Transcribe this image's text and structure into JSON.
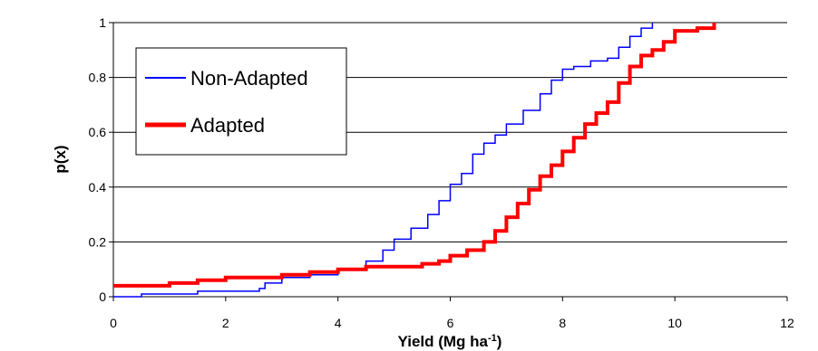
{
  "chart_data": {
    "type": "line",
    "title": "",
    "xlabel": "Yield (Mg ha",
    "xlabel_sup": "-1",
    "xlabel_close": ")",
    "ylabel": "p(x)",
    "xlim": [
      0,
      12
    ],
    "ylim": [
      0,
      1
    ],
    "x_ticks": [
      0,
      2,
      4,
      6,
      8,
      10,
      12
    ],
    "x_tick_labels": [
      "0",
      "2",
      "4",
      "6",
      "8",
      "10",
      "12"
    ],
    "y_ticks": [
      0,
      0.2,
      0.4,
      0.6,
      0.8,
      1
    ],
    "y_tick_labels": [
      "0",
      "0.2",
      "0.4",
      "0.6",
      "0.8",
      "1"
    ],
    "grid": "horizontal",
    "legend_position": "top-left",
    "series": [
      {
        "name": "Non-Adapted",
        "color": "#0000ff",
        "line_style": "thin",
        "x": [
          0.0,
          0.5,
          1.0,
          1.5,
          2.0,
          2.6,
          2.7,
          3.0,
          3.5,
          4.0,
          4.5,
          4.8,
          5.0,
          5.3,
          5.6,
          5.8,
          6.0,
          6.2,
          6.4,
          6.6,
          6.8,
          7.0,
          7.3,
          7.6,
          7.8,
          8.0,
          8.2,
          8.5,
          8.8,
          9.0,
          9.2,
          9.4,
          9.6
        ],
        "y": [
          0.0,
          0.01,
          0.01,
          0.02,
          0.02,
          0.03,
          0.05,
          0.07,
          0.08,
          0.1,
          0.13,
          0.17,
          0.21,
          0.25,
          0.3,
          0.35,
          0.41,
          0.45,
          0.52,
          0.56,
          0.59,
          0.63,
          0.68,
          0.74,
          0.79,
          0.83,
          0.84,
          0.86,
          0.87,
          0.91,
          0.95,
          0.98,
          1.0
        ]
      },
      {
        "name": "Adapted",
        "color": "#ff0000",
        "line_style": "thick",
        "x": [
          0.0,
          0.5,
          1.0,
          1.5,
          2.0,
          2.5,
          3.0,
          3.5,
          4.0,
          4.5,
          5.0,
          5.5,
          5.8,
          6.0,
          6.3,
          6.6,
          6.8,
          7.0,
          7.2,
          7.4,
          7.6,
          7.8,
          8.0,
          8.2,
          8.4,
          8.6,
          8.8,
          9.0,
          9.2,
          9.4,
          9.6,
          9.8,
          10.0,
          10.4,
          10.7
        ],
        "y": [
          0.04,
          0.04,
          0.05,
          0.06,
          0.07,
          0.07,
          0.08,
          0.09,
          0.1,
          0.11,
          0.11,
          0.12,
          0.13,
          0.15,
          0.17,
          0.2,
          0.24,
          0.29,
          0.34,
          0.39,
          0.44,
          0.48,
          0.53,
          0.58,
          0.63,
          0.67,
          0.71,
          0.78,
          0.84,
          0.88,
          0.9,
          0.93,
          0.97,
          0.98,
          1.0
        ]
      }
    ]
  }
}
